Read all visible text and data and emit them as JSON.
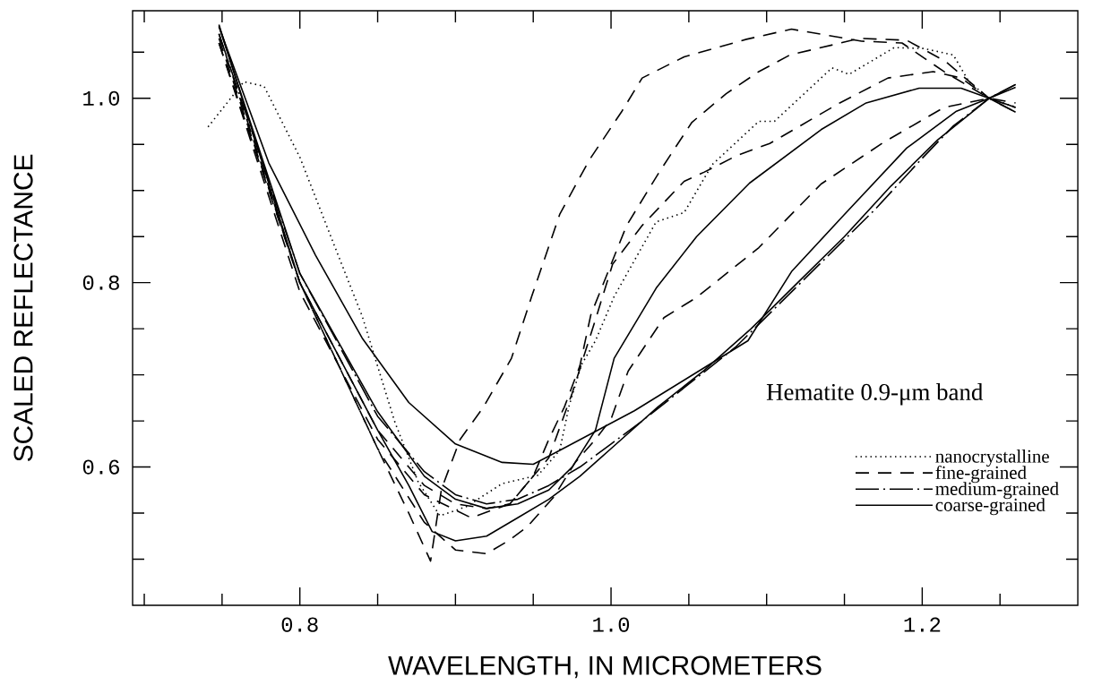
{
  "chart_data": {
    "type": "line",
    "xlabel": "WAVELENGTH, IN MICROMETERS",
    "ylabel": "SCALED REFLECTANCE",
    "annotations": [
      "Hematite 0.9-μm band"
    ],
    "xlim": [
      0.6925,
      1.3
    ],
    "ylim": [
      0.45,
      1.095
    ],
    "xticks": [
      {
        "value": 0.7,
        "label": null
      },
      {
        "value": 0.75,
        "label": null
      },
      0.8,
      {
        "value": 0.85,
        "label": null
      },
      {
        "value": 0.9,
        "label": null
      },
      {
        "value": 0.95,
        "label": null
      },
      {
        "value": 1.0,
        "label": "1.0"
      },
      {
        "value": 1.05,
        "label": null
      },
      {
        "value": 1.1,
        "label": null
      },
      {
        "value": 1.15,
        "label": null
      },
      1.2,
      {
        "value": 1.25,
        "label": null
      }
    ],
    "yticks": [
      {
        "value": 0.5,
        "label": null
      },
      {
        "value": 0.55,
        "label": null
      },
      0.6,
      {
        "value": 0.65,
        "label": null
      },
      {
        "value": 0.7,
        "label": null
      },
      {
        "value": 0.75,
        "label": null
      },
      0.8,
      {
        "value": 0.85,
        "label": null
      },
      {
        "value": 0.9,
        "label": null
      },
      {
        "value": 0.95,
        "label": null
      },
      {
        "value": 1.0,
        "label": "1.0"
      },
      {
        "value": 1.05,
        "label": null
      }
    ],
    "legend": "bottom right",
    "grid": false,
    "marker": "none",
    "series": [
      {
        "name": "nanocrystalline",
        "color": "#000000",
        "line_style": "dotted",
        "x": [
          0.741,
          0.764,
          0.777,
          0.8,
          0.822,
          0.84,
          0.861,
          0.876,
          0.89,
          0.907,
          0.93,
          0.953,
          0.967,
          0.973,
          0.981,
          0.99,
          1.002,
          1.029,
          1.047,
          1.065,
          1.095,
          1.105,
          1.142,
          1.153,
          1.182,
          1.201,
          1.22,
          1.23,
          1.243,
          1.259
        ],
        "values": [
          0.969,
          1.018,
          1.013,
          0.936,
          0.841,
          0.764,
          0.649,
          0.584,
          0.547,
          0.557,
          0.582,
          0.591,
          0.618,
          0.666,
          0.711,
          0.737,
          0.785,
          0.866,
          0.876,
          0.928,
          0.975,
          0.975,
          1.033,
          1.026,
          1.055,
          1.054,
          1.047,
          1.018,
          1.0,
          0.991
        ]
      },
      {
        "name": "fine-grained",
        "color": "#000000",
        "line_style": "dashed",
        "x": [
          0.748,
          0.8,
          0.85,
          0.87,
          0.884,
          0.891,
          0.903,
          0.918,
          0.936,
          0.949,
          0.967,
          0.986,
          1.007,
          1.02,
          1.047,
          1.087,
          1.116,
          1.161,
          1.187,
          1.214,
          1.243,
          1.26
        ],
        "values": [
          1.07,
          0.8,
          0.62,
          0.55,
          0.498,
          0.576,
          0.63,
          0.665,
          0.718,
          0.785,
          0.874,
          0.933,
          0.986,
          1.022,
          1.045,
          1.064,
          1.075,
          1.062,
          1.06,
          1.029,
          1.0,
          0.99
        ]
      },
      {
        "color": "#000000",
        "line_style": "dashed",
        "x": [
          0.748,
          0.8,
          0.85,
          0.88,
          0.9,
          0.92,
          0.935,
          0.95,
          0.96,
          0.97,
          0.98,
          0.987,
          1.01,
          1.031,
          1.052,
          1.074,
          1.095,
          1.115,
          1.16,
          1.19,
          1.215,
          1.243,
          1.26
        ],
        "values": [
          1.065,
          0.8,
          0.64,
          0.58,
          0.56,
          0.555,
          0.56,
          0.59,
          0.63,
          0.665,
          0.71,
          0.765,
          0.862,
          0.92,
          0.974,
          1.005,
          1.029,
          1.047,
          1.065,
          1.063,
          1.04,
          1.0,
          0.985
        ]
      },
      {
        "color": "#000000",
        "line_style": "dashed",
        "x": [
          0.748,
          0.8,
          0.85,
          0.88,
          0.91,
          0.935,
          0.96,
          0.975,
          0.99,
          1.001,
          1.02,
          1.047,
          1.06,
          1.081,
          1.102,
          1.147,
          1.178,
          1.207,
          1.225,
          1.243,
          1.26
        ],
        "values": [
          1.06,
          0.79,
          0.63,
          0.57,
          0.545,
          0.56,
          0.61,
          0.68,
          0.76,
          0.82,
          0.862,
          0.91,
          0.92,
          0.938,
          0.951,
          0.995,
          1.022,
          1.029,
          1.022,
          1.0,
          0.99
        ]
      },
      {
        "color": "#000000",
        "line_style": "dashed",
        "x": [
          0.748,
          0.8,
          0.85,
          0.88,
          0.9,
          0.92,
          0.934,
          0.946,
          0.963,
          0.977,
          0.99,
          1.0,
          1.011,
          1.034,
          1.055,
          1.095,
          1.135,
          1.175,
          1.214,
          1.243,
          1.26
        ],
        "values": [
          1.06,
          0.8,
          0.62,
          0.54,
          0.51,
          0.506,
          0.52,
          0.535,
          0.567,
          0.605,
          0.63,
          0.652,
          0.704,
          0.762,
          0.784,
          0.838,
          0.907,
          0.952,
          0.99,
          1.0,
          0.995
        ]
      },
      {
        "name": "medium-grained",
        "color": "#000000",
        "line_style": "dashdot",
        "x": [
          0.748,
          0.8,
          0.85,
          0.88,
          0.9,
          0.92,
          0.94,
          0.96,
          0.98,
          1.0,
          1.02,
          1.05,
          1.08,
          1.11,
          1.14,
          1.17,
          1.2,
          1.22,
          1.243,
          1.26
        ],
        "values": [
          1.07,
          0.81,
          0.655,
          0.595,
          0.57,
          0.56,
          0.565,
          0.58,
          0.6,
          0.625,
          0.65,
          0.69,
          0.73,
          0.78,
          0.83,
          0.88,
          0.935,
          0.97,
          1.0,
          1.015
        ]
      },
      {
        "name": "coarse-grained",
        "color": "#000000",
        "line_style": "solid",
        "x": [
          0.748,
          0.78,
          0.81,
          0.84,
          0.87,
          0.9,
          0.93,
          0.95,
          0.967,
          1.015,
          1.088,
          1.116,
          1.15,
          1.19,
          1.222,
          1.243,
          1.26
        ],
        "values": [
          1.078,
          0.93,
          0.83,
          0.74,
          0.67,
          0.625,
          0.605,
          0.603,
          0.618,
          0.661,
          0.737,
          0.812,
          0.874,
          0.946,
          0.986,
          1.0,
          1.012
        ]
      },
      {
        "color": "#000000",
        "line_style": "solid",
        "x": [
          0.748,
          0.8,
          0.85,
          0.88,
          0.9,
          0.92,
          0.94,
          0.96,
          0.975,
          0.99,
          1.002,
          1.029,
          1.055,
          1.089,
          1.135,
          1.164,
          1.198,
          1.225,
          1.243,
          1.26
        ],
        "values": [
          1.078,
          0.81,
          0.66,
          0.59,
          0.565,
          0.555,
          0.56,
          0.575,
          0.6,
          0.64,
          0.718,
          0.794,
          0.85,
          0.908,
          0.966,
          0.995,
          1.011,
          1.011,
          1.0,
          0.985
        ]
      },
      {
        "color": "#000000",
        "line_style": "solid",
        "x": [
          0.748,
          0.8,
          0.85,
          0.87,
          0.885,
          0.9,
          0.92,
          0.94,
          0.96,
          0.98,
          1.0,
          1.03,
          1.06,
          1.09,
          1.12,
          1.15,
          1.18,
          1.21,
          1.243,
          1.26
        ],
        "values": [
          1.08,
          0.8,
          0.64,
          0.58,
          0.53,
          0.52,
          0.525,
          0.545,
          0.565,
          0.59,
          0.62,
          0.665,
          0.705,
          0.75,
          0.8,
          0.85,
          0.905,
          0.955,
          1.0,
          1.015
        ]
      }
    ]
  }
}
